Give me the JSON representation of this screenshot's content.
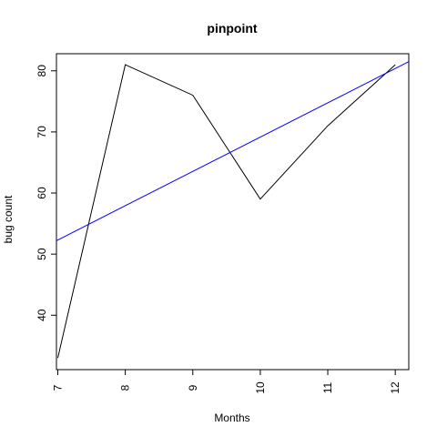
{
  "chart_data": {
    "type": "line",
    "title": "pinpoint",
    "xlabel": "Months",
    "ylabel": "bug count",
    "xlim": [
      6.98,
      12.2
    ],
    "ylim": [
      31.1,
      82.8
    ],
    "grid": false,
    "x_ticks": [
      7,
      8,
      9,
      10,
      11,
      12
    ],
    "x_tick_labels": [
      "7",
      "8",
      "9",
      "10",
      "11",
      "12"
    ],
    "y_ticks": [
      40,
      50,
      60,
      70,
      80
    ],
    "y_tick_labels": [
      "40",
      "50",
      "60",
      "70",
      "80"
    ],
    "series": [
      {
        "color": "#000000",
        "x": [
          7,
          8,
          9,
          10,
          11,
          12
        ],
        "y": [
          33,
          81,
          76,
          59,
          71,
          81
        ]
      },
      {
        "color": "#0000ff",
        "kind": "trend_line",
        "x": [
          6.98,
          12.2
        ],
        "y": [
          52.2,
          81.5
        ]
      }
    ]
  }
}
